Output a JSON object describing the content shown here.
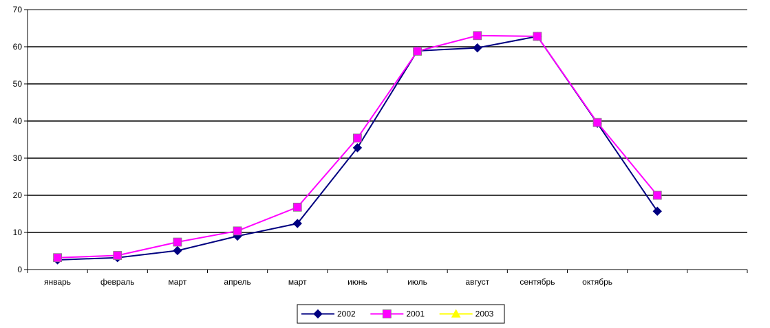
{
  "chart_data": {
    "type": "line",
    "categories": [
      "январь",
      "февраль",
      "март",
      "апрель",
      "март",
      "июнь",
      "июль",
      "август",
      "сентябрь",
      "октябрь",
      "",
      ""
    ],
    "series": [
      {
        "name": "2002",
        "color": "#000080",
        "marker": "diamond",
        "values": [
          2.6,
          3.2,
          5.1,
          9.0,
          12.4,
          32.8,
          58.9,
          59.7,
          62.8,
          39.4,
          15.7,
          null
        ]
      },
      {
        "name": "2001",
        "color": "#FF00FF",
        "marker": "square",
        "values": [
          3.2,
          3.8,
          7.4,
          10.4,
          16.8,
          35.4,
          58.8,
          63.0,
          62.8,
          39.6,
          20.0,
          null
        ]
      },
      {
        "name": "2003",
        "color": "#FFFF00",
        "marker": "triangle",
        "values": [
          null,
          null,
          null,
          null,
          null,
          null,
          null,
          null,
          null,
          null,
          null,
          null
        ]
      }
    ],
    "ylim": [
      0,
      70
    ],
    "yticks": [
      0,
      10,
      20,
      30,
      40,
      50,
      60,
      70
    ],
    "grid": true,
    "legend": "bottom-center"
  }
}
